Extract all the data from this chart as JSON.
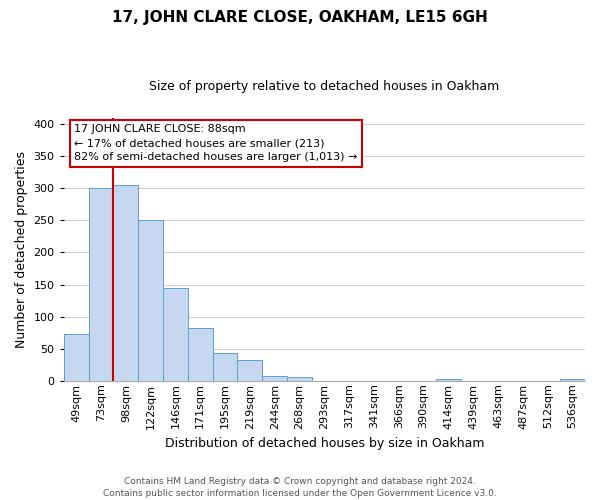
{
  "title": "17, JOHN CLARE CLOSE, OAKHAM, LE15 6GH",
  "subtitle": "Size of property relative to detached houses in Oakham",
  "xlabel": "Distribution of detached houses by size in Oakham",
  "ylabel": "Number of detached properties",
  "bar_labels": [
    "49sqm",
    "73sqm",
    "98sqm",
    "122sqm",
    "146sqm",
    "171sqm",
    "195sqm",
    "219sqm",
    "244sqm",
    "268sqm",
    "293sqm",
    "317sqm",
    "341sqm",
    "366sqm",
    "390sqm",
    "414sqm",
    "439sqm",
    "463sqm",
    "487sqm",
    "512sqm",
    "536sqm"
  ],
  "bar_values": [
    73,
    300,
    305,
    250,
    145,
    83,
    44,
    32,
    8,
    6,
    0,
    0,
    0,
    0,
    0,
    2,
    0,
    0,
    0,
    0,
    2
  ],
  "bar_color": "#c5d8f0",
  "bar_edge_color": "#5a9fd4",
  "vline_x": 1.5,
  "vline_color": "#cc0000",
  "ylim": [
    0,
    410
  ],
  "yticks": [
    0,
    50,
    100,
    150,
    200,
    250,
    300,
    350,
    400
  ],
  "annotation_line1": "17 JOHN CLARE CLOSE: 88sqm",
  "annotation_line2": "← 17% of detached houses are smaller (213)",
  "annotation_line3": "82% of semi-detached houses are larger (1,013) →",
  "footer_line1": "Contains HM Land Registry data © Crown copyright and database right 2024.",
  "footer_line2": "Contains public sector information licensed under the Open Government Licence v3.0.",
  "grid_color": "#d0d0d0",
  "background_color": "#ffffff",
  "title_fontsize": 11,
  "subtitle_fontsize": 9,
  "ylabel_fontsize": 9,
  "xlabel_fontsize": 9,
  "tick_fontsize": 8,
  "annotation_fontsize": 8,
  "footer_fontsize": 6.5
}
